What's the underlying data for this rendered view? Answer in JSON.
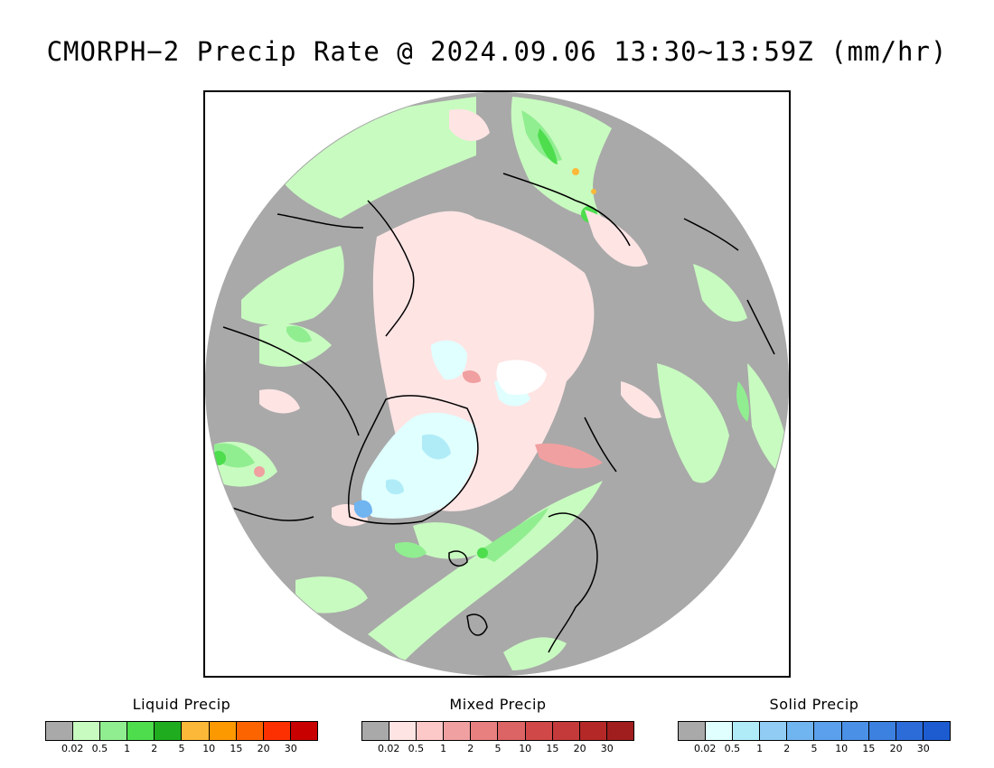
{
  "title": "CMORPH−2 Precip Rate @ 2024.09.06 13:30~13:59Z (mm/hr)",
  "map": {
    "projection": "polar stereographic (north)",
    "background_color": "#a9a9a9",
    "coastline_color": "#000000"
  },
  "legends": [
    {
      "title": "Liquid Precip",
      "colors": [
        "#a9a9a9",
        "#c8fbc0",
        "#90ee90",
        "#4ddd4d",
        "#1fac1f",
        "#fcb838",
        "#fc9800",
        "#fc6400",
        "#fc3000",
        "#c80000"
      ],
      "ticks": [
        "0.02",
        "0.5",
        "1",
        "2",
        "5",
        "10",
        "15",
        "20",
        "30"
      ]
    },
    {
      "title": "Mixed Precip",
      "colors": [
        "#a9a9a9",
        "#ffe4e4",
        "#fcc8c8",
        "#f0a0a0",
        "#e88080",
        "#dc6464",
        "#d04848",
        "#c43a3a",
        "#b42828",
        "#a01e1e"
      ],
      "ticks": [
        "0.02",
        "0.5",
        "1",
        "2",
        "5",
        "10",
        "15",
        "20",
        "30"
      ]
    },
    {
      "title": "Solid Precip",
      "colors": [
        "#a9a9a9",
        "#e0ffff",
        "#b0ecf8",
        "#90ccf4",
        "#70b4f0",
        "#5aa0ec",
        "#4a90e6",
        "#3c80e0",
        "#2c6cd8",
        "#1c5cd0"
      ],
      "ticks": [
        "0.02",
        "0.5",
        "1",
        "2",
        "5",
        "10",
        "15",
        "20",
        "30"
      ]
    }
  ]
}
